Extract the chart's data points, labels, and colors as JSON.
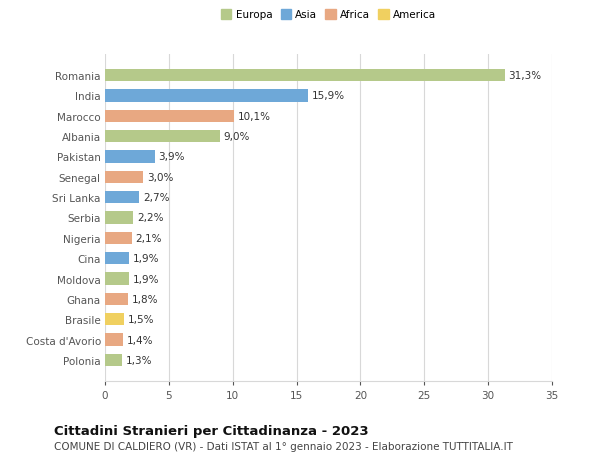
{
  "countries": [
    "Romania",
    "India",
    "Marocco",
    "Albania",
    "Pakistan",
    "Senegal",
    "Sri Lanka",
    "Serbia",
    "Nigeria",
    "Cina",
    "Moldova",
    "Ghana",
    "Brasile",
    "Costa d'Avorio",
    "Polonia"
  ],
  "values": [
    31.3,
    15.9,
    10.1,
    9.0,
    3.9,
    3.0,
    2.7,
    2.2,
    2.1,
    1.9,
    1.9,
    1.8,
    1.5,
    1.4,
    1.3
  ],
  "continents": [
    "Europa",
    "Asia",
    "Africa",
    "Europa",
    "Asia",
    "Africa",
    "Asia",
    "Europa",
    "Africa",
    "Asia",
    "Europa",
    "Africa",
    "America",
    "Africa",
    "Europa"
  ],
  "colors": {
    "Europa": "#b5c98a",
    "Asia": "#6ea8d8",
    "Africa": "#e8a882",
    "America": "#f0d060"
  },
  "legend_order": [
    "Europa",
    "Asia",
    "Africa",
    "America"
  ],
  "title": "Cittadini Stranieri per Cittadinanza - 2023",
  "subtitle": "COMUNE DI CALDIERO (VR) - Dati ISTAT al 1° gennaio 2023 - Elaborazione TUTTITALIA.IT",
  "xlim": [
    0,
    35
  ],
  "xticks": [
    0,
    5,
    10,
    15,
    20,
    25,
    30,
    35
  ],
  "background_color": "#ffffff",
  "grid_color": "#d8d8d8",
  "bar_height": 0.6,
  "label_fontsize": 7.5,
  "tick_fontsize": 7.5,
  "title_fontsize": 9.5,
  "subtitle_fontsize": 7.5,
  "fig_width": 6.0,
  "fig_height": 4.6,
  "dpi": 100
}
